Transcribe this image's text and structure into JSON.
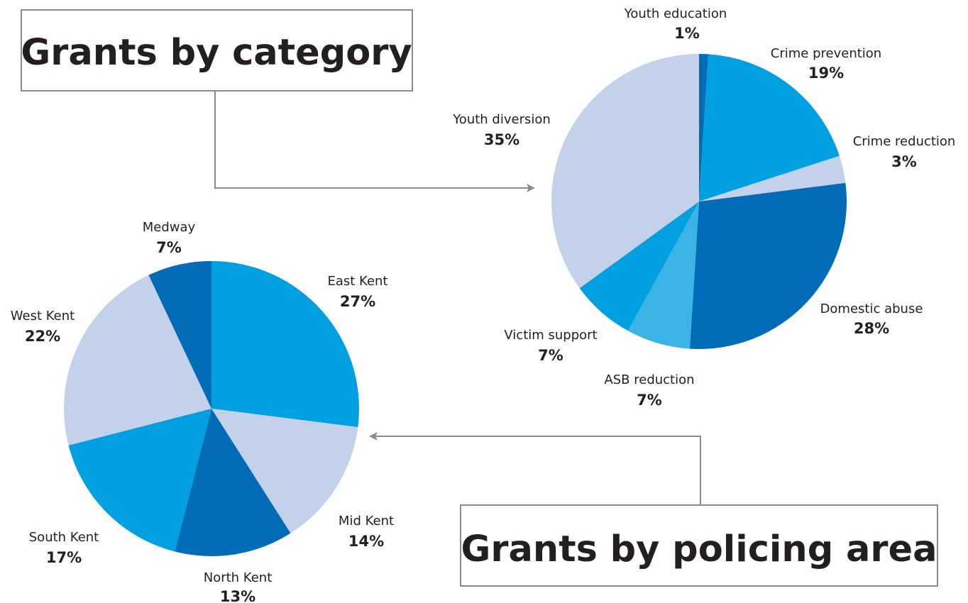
{
  "chart_data": [
    {
      "type": "pie",
      "title": "Grants by category",
      "colors": {
        "dark": "#006bb6",
        "mid": "#009fe0",
        "light": "#c3d1eb",
        "sky": "#3bb4e5"
      },
      "slices": [
        {
          "label": "Youth education",
          "value": 1,
          "value_label": "1%",
          "color": "#006bb6"
        },
        {
          "label": "Crime prevention",
          "value": 19,
          "value_label": "19%",
          "color": "#009fe0"
        },
        {
          "label": "Crime reduction",
          "value": 3,
          "value_label": "3%",
          "color": "#c3d1eb"
        },
        {
          "label": "Domestic abuse",
          "value": 28,
          "value_label": "28%",
          "color": "#006bb6"
        },
        {
          "label": "ASB reduction",
          "value": 7,
          "value_label": "7%",
          "color": "#3bb4e5"
        },
        {
          "label": "Victim support",
          "value": 7,
          "value_label": "7%",
          "color": "#009fe0"
        },
        {
          "label": "Youth diversion",
          "value": 35,
          "value_label": "35%",
          "color": "#c3d1eb"
        }
      ]
    },
    {
      "type": "pie",
      "title": "Grants by policing area",
      "slices": [
        {
          "label": "East Kent",
          "value": 27,
          "value_label": "27%",
          "color": "#009fe0"
        },
        {
          "label": "Mid Kent",
          "value": 14,
          "value_label": "14%",
          "color": "#c3d1eb"
        },
        {
          "label": "North Kent",
          "value": 13,
          "value_label": "13%",
          "color": "#006bb6"
        },
        {
          "label": "South Kent",
          "value": 17,
          "value_label": "17%",
          "color": "#009fe0"
        },
        {
          "label": "West Kent",
          "value": 22,
          "value_label": "22%",
          "color": "#c3d1eb"
        },
        {
          "label": "Medway",
          "value": 7,
          "value_label": "7%",
          "color": "#006bb6"
        }
      ]
    }
  ],
  "connector_color": "#8a8a8a",
  "box_border_color": "#8a8a8a"
}
